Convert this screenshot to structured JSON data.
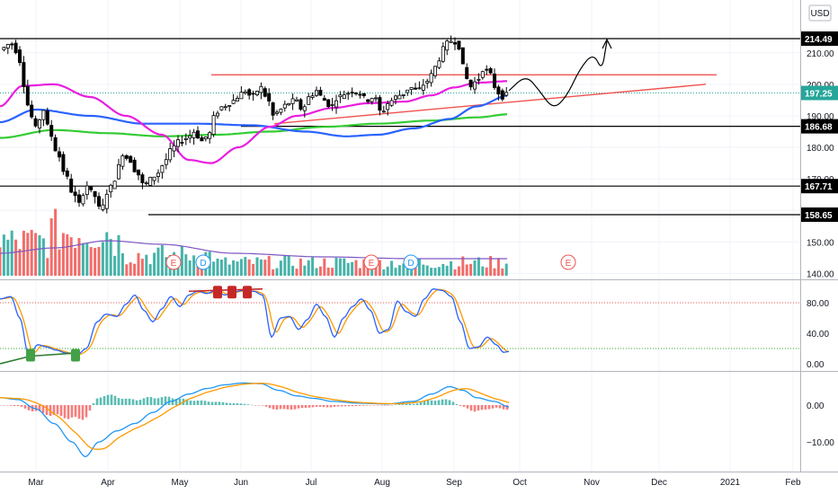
{
  "currency": "USD",
  "colors": {
    "up": "#26a69a",
    "down": "#ef5350",
    "candle_up": "#ffffff",
    "candle_down": "#000000",
    "ma_fast": "#e91ee0",
    "ma_mid": "#2962ff",
    "ma_slow": "#33cc33",
    "support": "#000000",
    "resist": "#ef5350",
    "stoch_k": "#2962ff",
    "stoch_d": "#ff9800",
    "macd": "#2196f3",
    "signal": "#ff9800",
    "macd_up": "#26a69a",
    "macd_down": "#ef5350",
    "tag_price": "#26a69a",
    "earnings": "#ef5350",
    "dividend": "#2196f3"
  },
  "chart_data": [
    {
      "type": "candlestick",
      "panel": "price",
      "y_axis_ticks": [
        210.0,
        200.0,
        190.0,
        180.0,
        170.0,
        160.0,
        150.0,
        140.0
      ],
      "y_axis_tick_labels": [
        "210.00",
        "200.00",
        "190.00",
        "180.00",
        "170.00",
        "160.00",
        "150.00",
        "140.00"
      ],
      "ylim": [
        139,
        217
      ],
      "x_axis_labels": [
        "Mar",
        "Apr",
        "May",
        "Jun",
        "Jul",
        "Aug",
        "Sep",
        "Oct",
        "Nov",
        "Dec",
        "2021",
        "Feb"
      ],
      "current_price": 197.25,
      "horizontal_levels": [
        {
          "value": 214.49,
          "label": "214.49",
          "color": "black"
        },
        {
          "value": 186.68,
          "label": "186.68",
          "color": "black"
        },
        {
          "value": 167.71,
          "label": "167.71",
          "color": "black"
        },
        {
          "value": 158.65,
          "label": "158.65",
          "color": "black"
        }
      ],
      "resistance_line": 203.0,
      "rising_trendline": [
        187.5,
        200.0
      ],
      "moving_averages": [
        {
          "color": "magenta",
          "start": 199,
          "end": 201
        },
        {
          "color": "blue",
          "start": 190,
          "end": 198
        },
        {
          "color": "green",
          "start": 184,
          "end": 190
        }
      ],
      "event_markers": [
        "E",
        "D",
        "E",
        "D",
        "E"
      ]
    },
    {
      "type": "bar",
      "panel": "volume",
      "description_of_series": "daily volume bars colored up/down with volume moving average"
    },
    {
      "type": "line",
      "panel": "stochastic",
      "y_axis_ticks": [
        80.0,
        40.0,
        0.0
      ],
      "y_axis_tick_labels": [
        "80.00",
        "40.00",
        "0.00"
      ],
      "ylim": [
        -8,
        108
      ],
      "overbought": 80,
      "oversold": 20
    },
    {
      "type": "line",
      "panel": "macd",
      "y_axis_ticks": [
        0.0,
        -10.0
      ],
      "y_axis_tick_labels": [
        "0.00",
        "−10.00"
      ],
      "ylim": [
        -15,
        6
      ]
    }
  ]
}
